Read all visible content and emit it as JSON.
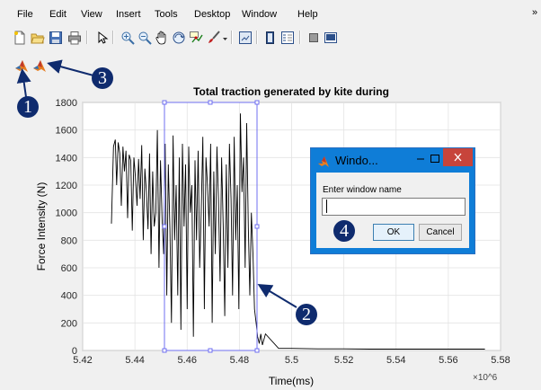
{
  "menubar": {
    "items": [
      "File",
      "Edit",
      "View",
      "Insert",
      "Tools",
      "Desktop",
      "Window",
      "Help"
    ],
    "overflow": "»"
  },
  "toolbar": {
    "icons": [
      "new-figure-icon",
      "open-file-icon",
      "save-icon",
      "print-icon",
      "edit-plot-icon",
      "zoom-in-icon",
      "zoom-out-icon",
      "pan-icon",
      "rotate-3d-icon",
      "data-cursor-icon",
      "brush-icon",
      "link-plot-icon",
      "colorbar-icon",
      "legend-icon",
      "hide-plot-tools-icon",
      "show-plot-tools-icon"
    ]
  },
  "custom_toolbar": {
    "icons": [
      "matlab-logo-icon",
      "matlab-logo-icon"
    ]
  },
  "chart_data": {
    "type": "line",
    "title": "Total traction generated by kite during",
    "xlabel": "Time(ms)",
    "ylabel": "Force Intensity (N)",
    "x_exponent": "×10^6",
    "xlim": [
      5.42,
      5.58
    ],
    "ylim": [
      0,
      1800
    ],
    "xticks": [
      "5.42",
      "5.44",
      "5.46",
      "5.48",
      "5.5",
      "5.52",
      "5.54",
      "5.56",
      "5.58"
    ],
    "yticks": [
      "0",
      "200",
      "400",
      "600",
      "800",
      "1000",
      "1200",
      "1400",
      "1600",
      "1800"
    ],
    "grid": true,
    "series": [
      {
        "color": "#000000",
        "x": [
          5.431,
          5.4318,
          5.4325,
          5.433,
          5.4336,
          5.4342,
          5.4348,
          5.4354,
          5.436,
          5.4366,
          5.4372,
          5.4378,
          5.4384,
          5.439,
          5.4396,
          5.4402,
          5.4408,
          5.4414,
          5.442,
          5.4426,
          5.4432,
          5.4438,
          5.4444,
          5.445,
          5.4456,
          5.4462,
          5.4468,
          5.4474,
          5.448,
          5.4486,
          5.4492,
          5.4498,
          5.4504,
          5.451,
          5.4516,
          5.4522,
          5.4528,
          5.4534,
          5.454,
          5.4546,
          5.4552,
          5.4558,
          5.4564,
          5.457,
          5.4576,
          5.4582,
          5.4588,
          5.4594,
          5.46,
          5.4606,
          5.4612,
          5.4618,
          5.4624,
          5.463,
          5.4636,
          5.4642,
          5.4648,
          5.4654,
          5.466,
          5.4666,
          5.4672,
          5.4678,
          5.4684,
          5.469,
          5.4696,
          5.4702,
          5.4708,
          5.4714,
          5.472,
          5.4726,
          5.4732,
          5.4738,
          5.4744,
          5.475,
          5.4756,
          5.4762,
          5.4768,
          5.4774,
          5.478,
          5.4786,
          5.4792,
          5.4798,
          5.4804,
          5.481,
          5.4816,
          5.4822,
          5.4828,
          5.4834,
          5.484,
          5.4846,
          5.4852,
          5.4858,
          5.4864,
          5.487,
          5.4876,
          5.4882,
          5.4888,
          5.49,
          5.495,
          5.5,
          5.51,
          5.52,
          5.53,
          5.54,
          5.55,
          5.56,
          5.57,
          5.574
        ],
        "y": [
          920,
          1480,
          1530,
          1200,
          1510,
          1430,
          1050,
          1480,
          1300,
          1450,
          960,
          1420,
          1380,
          870,
          1400,
          1260,
          1050,
          1390,
          1100,
          1490,
          800,
          1320,
          1150,
          880,
          1430,
          700,
          1300,
          900,
          1000,
          1600,
          600,
          1380,
          950,
          700,
          1500,
          400,
          1350,
          880,
          200,
          1560,
          800,
          1200,
          400,
          1400,
          150,
          1500,
          900,
          1350,
          300,
          1480,
          1000,
          1200,
          100,
          1380,
          800,
          1450,
          600,
          1000,
          1550,
          300,
          1400,
          1200,
          900,
          1500,
          200,
          1300,
          700,
          1480,
          1100,
          500,
          1400,
          900,
          250,
          1350,
          600,
          1500,
          1100,
          400,
          1550,
          800,
          1200,
          300,
          1720,
          1150,
          1400,
          600,
          1650,
          900,
          400,
          1000,
          700,
          300,
          200,
          100,
          50,
          120,
          40,
          120,
          15,
          15,
          12,
          12,
          10,
          10,
          10,
          10,
          10,
          10
        ]
      }
    ]
  },
  "dialog": {
    "title": "Windo...",
    "label": "Enter window name",
    "input_value": "",
    "ok_label": "OK",
    "cancel_label": "Cancel",
    "accent": "#0f7dd7"
  },
  "annotations": [
    {
      "number": "1",
      "target": "first custom toolbar button"
    },
    {
      "number": "2",
      "target": "selection rectangle"
    },
    {
      "number": "3",
      "target": "second custom toolbar button"
    },
    {
      "number": "4",
      "target": "dialog"
    }
  ]
}
